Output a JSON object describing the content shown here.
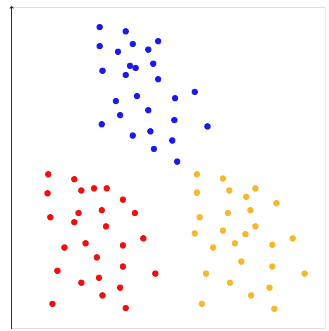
{
  "chart_data": {
    "type": "scatter",
    "xlim": [
      0,
      445
    ],
    "ylim": [
      0,
      456
    ],
    "xticks": [],
    "yticks": [],
    "tick_labels": false,
    "grid": false,
    "marker": "circle",
    "series": [
      {
        "color": "#1a1aee",
        "x": [
          125,
          162,
          125,
          172,
          151,
          208,
          194,
          201,
          168,
          176,
          129,
          162,
          208,
          178,
          148,
          232,
          260,
          194,
          154,
          231,
          128,
          278,
          172,
          197,
          228,
          202,
          235
        ],
        "y": [
          428,
          422,
          401,
          404,
          393,
          408,
          396,
          376,
          373,
          370,
          366,
          360,
          354,
          330,
          323,
          327,
          336,
          310,
          303,
          296,
          290,
          287,
          274,
          280,
          267,
          255,
          237
        ]
      },
      {
        "color": "#ee1111",
        "x": [
          52,
          89,
          51,
          99,
          117,
          135,
          158,
          95,
          128,
          175,
          55,
          89,
          134,
          187,
          105,
          75,
          158,
          121,
          158,
          65,
          204,
          124,
          99,
          154,
          129,
          58,
          162
        ],
        "y": [
          219,
          212,
          192,
          196,
          199,
          199,
          183,
          164,
          168,
          164,
          158,
          151,
          145,
          128,
          121,
          115,
          118,
          101,
          88,
          82,
          78,
          72,
          65,
          58,
          47,
          35,
          29
        ]
      },
      {
        "color": "#f5b82e",
        "x": [
          263,
          300,
          263,
          309,
          346,
          333,
          376,
          339,
          267,
          307,
          346,
          300,
          332,
          260,
          286,
          317,
          370,
          399,
          326,
          370,
          276,
          416,
          310,
          366,
          340,
          270,
          373
        ],
        "y": [
          219,
          213,
          193,
          196,
          199,
          187,
          178,
          168,
          158,
          164,
          145,
          139,
          134,
          135,
          115,
          121,
          119,
          128,
          95,
          88,
          78,
          78,
          65,
          58,
          47,
          35,
          28
        ]
      }
    ]
  }
}
